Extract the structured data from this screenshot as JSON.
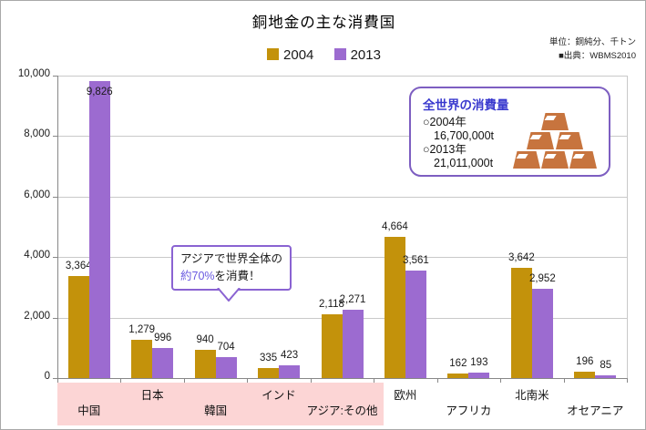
{
  "title": "銅地金の主な消費国",
  "notes": {
    "unit": "単位：銅純分、千トン",
    "source": "■出典：WBMS2010"
  },
  "legend": [
    {
      "label": "2004",
      "color": "#c3920b"
    },
    {
      "label": "2013",
      "color": "#9c6bd0"
    }
  ],
  "chart_data": {
    "type": "bar",
    "title": "銅地金の主な消費国",
    "categories": [
      "中国",
      "日本",
      "韓国",
      "インド",
      "アジア:その他",
      "欧州",
      "アフリカ",
      "北南米",
      "オセアニア"
    ],
    "series": [
      {
        "name": "2004",
        "color": "#c3920b",
        "values": [
          3364,
          1279,
          940,
          335,
          2118,
          4664,
          162,
          3642,
          196
        ],
        "labels": [
          "3,364",
          "1,279",
          "940",
          "335",
          "2,118",
          "4,664",
          "162",
          "3,642",
          "196"
        ]
      },
      {
        "name": "2013",
        "color": "#9c6bd0",
        "values": [
          9826,
          996,
          704,
          423,
          2271,
          3561,
          193,
          2952,
          85
        ],
        "labels": [
          "9,826",
          "996",
          "704",
          "423",
          "2,271",
          "3,561",
          "193",
          "2,952",
          "85"
        ]
      }
    ],
    "ylim": [
      0,
      10000
    ],
    "yticks": [
      0,
      2000,
      4000,
      6000,
      8000,
      10000
    ],
    "ytick_labels": [
      "0",
      "2,000",
      "4,000",
      "6,000",
      "8,000",
      "10,000"
    ],
    "grid": true,
    "legend_position": "top-center",
    "highlight_region": {
      "from_category": "中国",
      "to_category": "アジア:その他",
      "color": "#fcd5d5"
    }
  },
  "annotation": {
    "line1": "アジアで世界全体の",
    "highlight": "約70%",
    "rest": "を消費！",
    "highlight_color": "#6a5ae0",
    "border_color": "#8a63d2"
  },
  "infobox": {
    "title": "全世界の消費量",
    "title_color": "#3939ce",
    "border_color": "#7d5ec1",
    "ingot_color": "#c7743e",
    "items": [
      {
        "year": "○2004年",
        "value": "16,700,000t"
      },
      {
        "year": "○2013年",
        "value": "21,011,000t"
      }
    ]
  }
}
